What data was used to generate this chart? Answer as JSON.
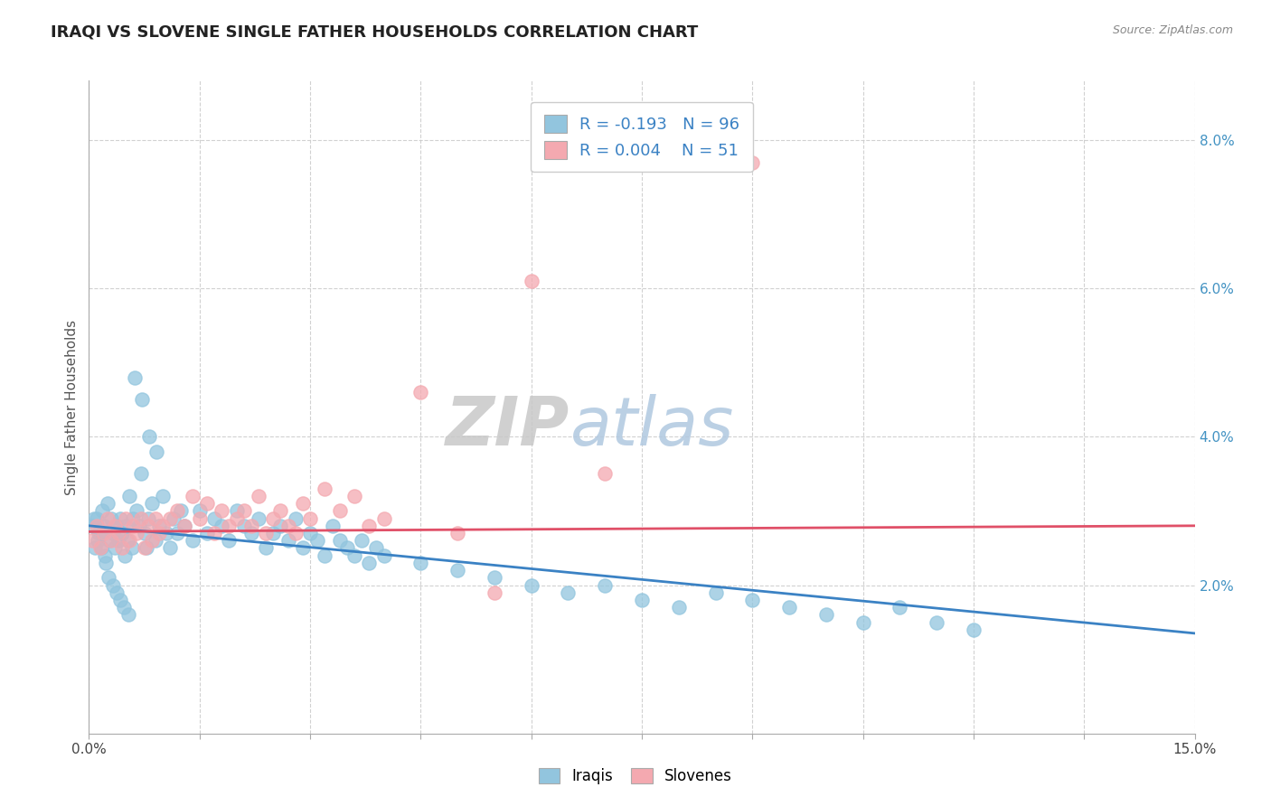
{
  "title": "IRAQI VS SLOVENE SINGLE FATHER HOUSEHOLDS CORRELATION CHART",
  "source": "Source: ZipAtlas.com",
  "ylabel": "Single Father Households",
  "xmin": 0.0,
  "xmax": 15.0,
  "ymin": 0.0,
  "ymax": 8.8,
  "yticks": [
    2.0,
    4.0,
    6.0,
    8.0
  ],
  "ytick_labels": [
    "2.0%",
    "4.0%",
    "6.0%",
    "8.0%"
  ],
  "iraqis_color": "#92c5de",
  "slovenes_color": "#f4a9b0",
  "iraqis_line_color": "#3b82c4",
  "slovenes_line_color": "#e05068",
  "background_color": "#ffffff",
  "grid_color": "#cccccc",
  "iraqis_x": [
    0.05,
    0.08,
    0.1,
    0.12,
    0.15,
    0.18,
    0.2,
    0.22,
    0.25,
    0.28,
    0.3,
    0.33,
    0.35,
    0.38,
    0.4,
    0.42,
    0.45,
    0.48,
    0.5,
    0.52,
    0.55,
    0.58,
    0.6,
    0.65,
    0.68,
    0.7,
    0.75,
    0.78,
    0.8,
    0.85,
    0.9,
    0.95,
    1.0,
    1.05,
    1.1,
    1.15,
    1.2,
    1.25,
    1.3,
    1.4,
    1.5,
    1.6,
    1.7,
    1.8,
    1.9,
    2.0,
    2.1,
    2.2,
    2.3,
    2.4,
    2.5,
    2.6,
    2.7,
    2.8,
    2.9,
    3.0,
    3.1,
    3.2,
    3.3,
    3.4,
    3.5,
    3.6,
    3.7,
    3.8,
    3.9,
    4.0,
    4.5,
    5.0,
    5.5,
    6.0,
    6.5,
    7.0,
    7.5,
    8.0,
    8.5,
    9.0,
    9.5,
    10.0,
    10.5,
    11.0,
    11.5,
    12.0,
    0.07,
    0.13,
    0.17,
    0.23,
    0.27,
    0.32,
    0.37,
    0.43,
    0.47,
    0.53,
    0.62,
    0.72,
    0.82,
    0.92
  ],
  "iraqis_y": [
    2.8,
    2.5,
    2.9,
    2.6,
    2.7,
    3.0,
    2.8,
    2.4,
    3.1,
    2.6,
    2.9,
    2.7,
    2.5,
    2.8,
    2.6,
    2.9,
    2.7,
    2.4,
    2.8,
    2.6,
    3.2,
    2.5,
    2.9,
    3.0,
    2.8,
    3.5,
    2.7,
    2.5,
    2.9,
    3.1,
    2.6,
    2.8,
    3.2,
    2.7,
    2.5,
    2.9,
    2.7,
    3.0,
    2.8,
    2.6,
    3.0,
    2.7,
    2.9,
    2.8,
    2.6,
    3.0,
    2.8,
    2.7,
    2.9,
    2.5,
    2.7,
    2.8,
    2.6,
    2.9,
    2.5,
    2.7,
    2.6,
    2.4,
    2.8,
    2.6,
    2.5,
    2.4,
    2.6,
    2.3,
    2.5,
    2.4,
    2.3,
    2.2,
    2.1,
    2.0,
    1.9,
    2.0,
    1.8,
    1.7,
    1.9,
    1.8,
    1.7,
    1.6,
    1.5,
    1.7,
    1.5,
    1.4,
    2.9,
    2.7,
    2.5,
    2.3,
    2.1,
    2.0,
    1.9,
    1.8,
    1.7,
    1.6,
    4.8,
    4.5,
    4.0,
    3.8
  ],
  "slovenes_x": [
    0.05,
    0.1,
    0.15,
    0.2,
    0.25,
    0.3,
    0.35,
    0.4,
    0.45,
    0.5,
    0.55,
    0.6,
    0.65,
    0.7,
    0.75,
    0.8,
    0.85,
    0.9,
    0.95,
    1.0,
    1.1,
    1.2,
    1.3,
    1.4,
    1.5,
    1.6,
    1.7,
    1.8,
    1.9,
    2.0,
    2.1,
    2.2,
    2.3,
    2.4,
    2.5,
    2.6,
    2.7,
    2.8,
    2.9,
    3.0,
    3.2,
    3.4,
    3.6,
    3.8,
    4.0,
    4.5,
    5.0,
    5.5,
    6.0,
    7.0,
    9.0
  ],
  "slovenes_y": [
    2.6,
    2.8,
    2.5,
    2.7,
    2.9,
    2.6,
    2.8,
    2.7,
    2.5,
    2.9,
    2.6,
    2.8,
    2.7,
    2.9,
    2.5,
    2.8,
    2.6,
    2.9,
    2.7,
    2.8,
    2.9,
    3.0,
    2.8,
    3.2,
    2.9,
    3.1,
    2.7,
    3.0,
    2.8,
    2.9,
    3.0,
    2.8,
    3.2,
    2.7,
    2.9,
    3.0,
    2.8,
    2.7,
    3.1,
    2.9,
    3.3,
    3.0,
    3.2,
    2.8,
    2.9,
    4.6,
    2.7,
    1.9,
    6.1,
    3.5,
    7.7
  ]
}
